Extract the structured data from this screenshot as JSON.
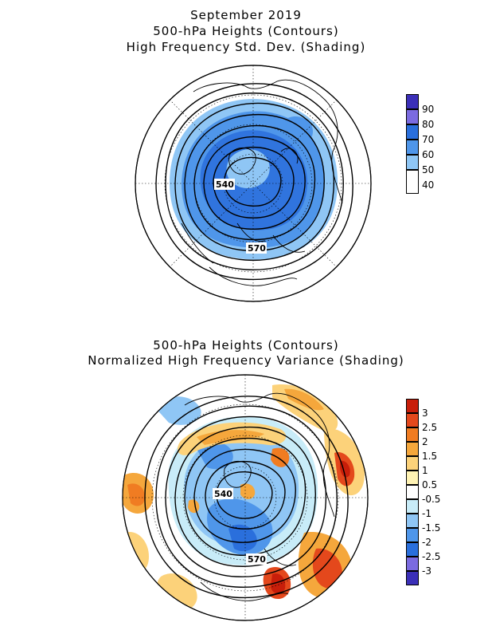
{
  "panel_top": {
    "title_lines": [
      "September 2019",
      "500-hPa Heights (Contours)",
      "High Frequency Std. Dev. (Shading)"
    ],
    "contour_labels": [
      "540",
      "570"
    ],
    "legend": {
      "labels": [
        "90",
        "80",
        "70",
        "60",
        "50",
        "40"
      ],
      "colors": [
        "#3b2fb8",
        "#7b6be0",
        "#2a6fdc",
        "#4f96ea",
        "#8fc6f5",
        "#ffffff"
      ]
    }
  },
  "panel_bottom": {
    "title_lines": [
      "500-hPa Heights (Contours)",
      "Normalized High Frequency Variance (Shading)"
    ],
    "contour_labels": [
      "540",
      "570"
    ],
    "legend": {
      "labels": [
        "3",
        "2.5",
        "2",
        "1.5",
        "1",
        "0.5",
        "-0.5",
        "-1",
        "-1.5",
        "-2",
        "-2.5",
        "-3"
      ],
      "colors": [
        "#c81e0a",
        "#e4481c",
        "#f07c22",
        "#f5a73c",
        "#fcd27a",
        "#fff3b4",
        "#ffffff",
        "#c8ecf8",
        "#8fc6f5",
        "#4f96ea",
        "#2a6fdc",
        "#7b6be0",
        "#3b2fb8"
      ]
    }
  }
}
